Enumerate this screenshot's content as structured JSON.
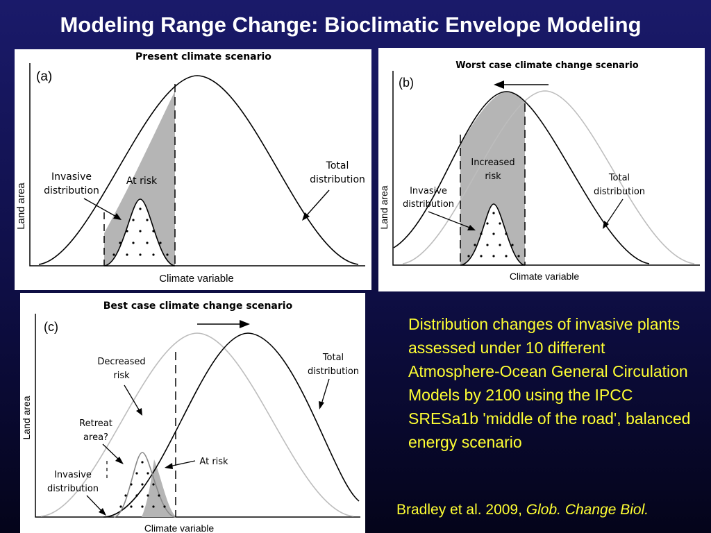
{
  "slide": {
    "title": "Modeling Range Change: Bioclimatic Envelope Modeling",
    "body": "Distribution changes of invasive plants assessed under 10 different Atmosphere-Ocean General Circulation Models by 2100 using the IPCC SRESa1b 'middle of the road', balanced energy scenario",
    "citation_authors": "Bradley et al. 2009, ",
    "citation_journal": "Glob. Change Biol."
  },
  "panels": [
    {
      "id": "a",
      "label": "(a)",
      "title": "Present climate scenario",
      "xlabel": "Climate variable",
      "ylabel": "Land area",
      "annotations": [
        "Invasive",
        "distribution",
        "At risk",
        "Total",
        "distribution"
      ]
    },
    {
      "id": "b",
      "label": "(b)",
      "title": "Worst case climate change scenario",
      "xlabel": "Climate variable",
      "ylabel": "Land area",
      "annotations": [
        "Increased",
        "risk",
        "Invasive",
        "distribution",
        "Total",
        "distribution"
      ]
    },
    {
      "id": "c",
      "label": "(c)",
      "title": "Best case climate change scenario",
      "xlabel": "Climate variable",
      "ylabel": "Land area",
      "annotations": [
        "Decreased",
        "risk",
        "Retreat",
        "area?",
        "Invasive",
        "distribution",
        "At risk",
        "Total",
        "distribution"
      ]
    }
  ],
  "colors": {
    "text_yellow": "#ffff33",
    "title_white": "#ffffff",
    "shade_gray": "#b5b5b5"
  }
}
